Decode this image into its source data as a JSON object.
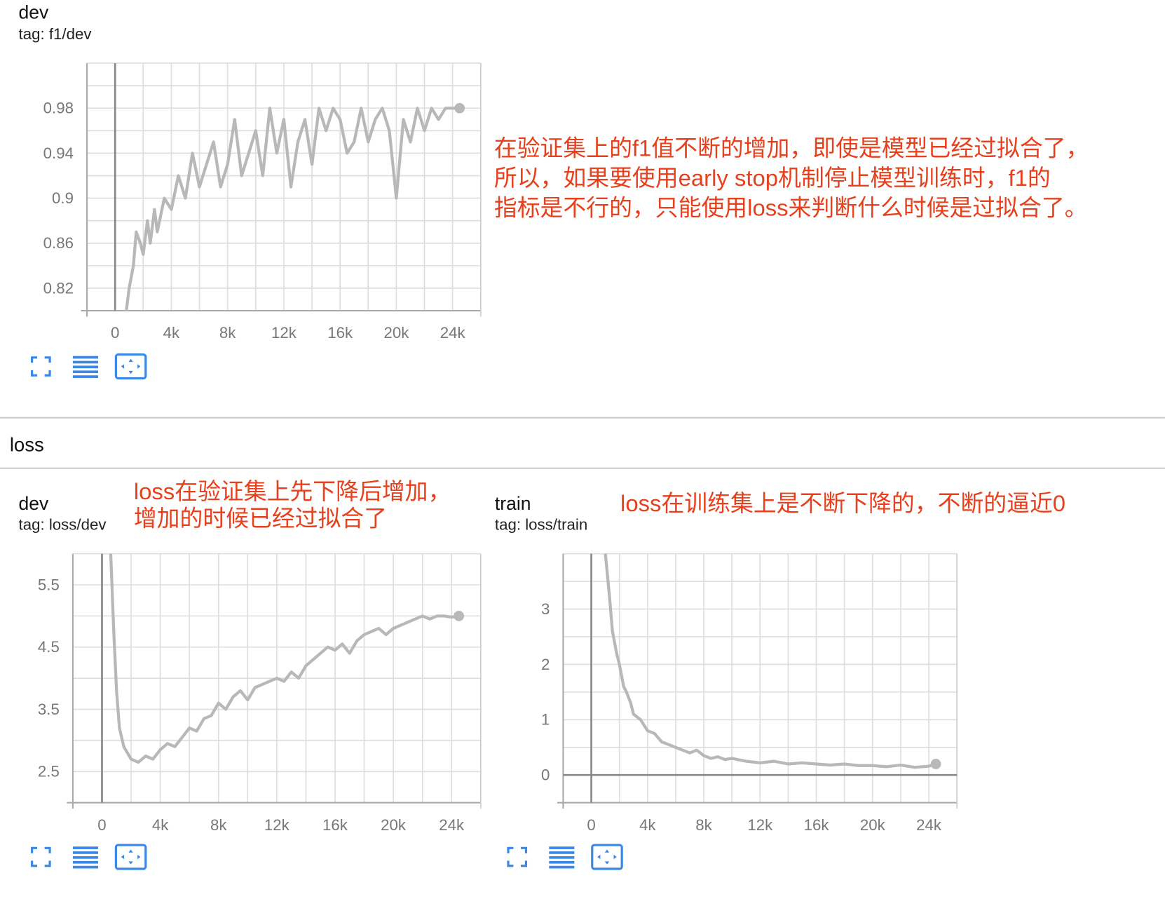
{
  "section_title": "loss",
  "chart_data": [
    {
      "type": "line",
      "title": "dev",
      "subtitle": "tag: f1/dev",
      "color": "#b8b8b8",
      "annotation": [
        "在验证集上的f1值不断的增加，即使是模型已经过拟合了，",
        "所以，如果要使用early stop机制停止模型训练时，f1的",
        "指标是不行的，只能使用loss来判断什么时候是过拟合了。"
      ],
      "x": [
        800,
        1000,
        1300,
        1500,
        1800,
        2000,
        2300,
        2500,
        2800,
        3000,
        3500,
        4000,
        4500,
        5000,
        5500,
        6000,
        6500,
        7000,
        7500,
        8000,
        8500,
        9000,
        9500,
        10000,
        10500,
        11000,
        11500,
        12000,
        12500,
        13000,
        13500,
        14000,
        14500,
        15000,
        15500,
        16000,
        16500,
        17000,
        17500,
        18000,
        18500,
        19000,
        19500,
        20000,
        20500,
        21000,
        21500,
        22000,
        22500,
        23000,
        23500,
        24000,
        24500
      ],
      "values": [
        0.8,
        0.82,
        0.84,
        0.87,
        0.86,
        0.85,
        0.88,
        0.86,
        0.89,
        0.87,
        0.9,
        0.89,
        0.92,
        0.9,
        0.94,
        0.91,
        0.93,
        0.95,
        0.91,
        0.93,
        0.97,
        0.92,
        0.94,
        0.96,
        0.92,
        0.98,
        0.94,
        0.97,
        0.91,
        0.95,
        0.97,
        0.93,
        0.98,
        0.96,
        0.98,
        0.97,
        0.94,
        0.95,
        0.98,
        0.95,
        0.97,
        0.98,
        0.96,
        0.9,
        0.97,
        0.95,
        0.98,
        0.96,
        0.98,
        0.97,
        0.98,
        0.98,
        0.98
      ],
      "xlim": [
        -2000,
        26000
      ],
      "xticks": [
        0,
        {
          "value": 4000,
          "label": "4k"
        },
        {
          "value": 8000,
          "label": "8k"
        },
        {
          "value": 12000,
          "label": "12k"
        },
        {
          "value": 16000,
          "label": "16k"
        },
        {
          "value": 20000,
          "label": "20k"
        },
        {
          "value": 24000,
          "label": "24k"
        }
      ],
      "x_minor_ticks": [
        -2000,
        2000,
        6000,
        10000,
        14000,
        18000,
        22000,
        26000
      ],
      "ylim": [
        0.8,
        1.02
      ],
      "yticks": [
        0.82,
        0.86,
        0.9,
        0.94,
        0.98
      ],
      "y_minor_ticks": [
        0.8,
        0.84,
        0.88,
        0.92,
        0.96,
        1.0,
        1.02
      ],
      "grid": true
    },
    {
      "type": "line",
      "title": "dev",
      "subtitle": "tag: loss/dev",
      "color": "#b8b8b8",
      "annotation": [
        "loss在验证集上先下降后增加，",
        "增加的时候已经过拟合了"
      ],
      "x": [
        600,
        800,
        1000,
        1200,
        1500,
        2000,
        2500,
        3000,
        3500,
        4000,
        4500,
        5000,
        5500,
        6000,
        6500,
        7000,
        7500,
        8000,
        8500,
        9000,
        9500,
        10000,
        10500,
        11000,
        11500,
        12000,
        12500,
        13000,
        13500,
        14000,
        14500,
        15000,
        15500,
        16000,
        16500,
        17000,
        17500,
        18000,
        18500,
        19000,
        19500,
        20000,
        20500,
        21000,
        21500,
        22000,
        22500,
        23000,
        23500,
        24000,
        24500
      ],
      "values": [
        6.0,
        4.8,
        3.8,
        3.2,
        2.9,
        2.7,
        2.65,
        2.75,
        2.7,
        2.85,
        2.95,
        2.9,
        3.05,
        3.2,
        3.15,
        3.35,
        3.4,
        3.6,
        3.5,
        3.7,
        3.8,
        3.65,
        3.85,
        3.9,
        3.95,
        4.0,
        3.95,
        4.1,
        4.0,
        4.2,
        4.3,
        4.4,
        4.5,
        4.45,
        4.55,
        4.4,
        4.6,
        4.7,
        4.75,
        4.8,
        4.7,
        4.8,
        4.85,
        4.9,
        4.95,
        5.0,
        4.95,
        5.0,
        5.0,
        4.98,
        5.0
      ],
      "xlim": [
        -2000,
        26000
      ],
      "xticks": [
        0,
        {
          "value": 4000,
          "label": "4k"
        },
        {
          "value": 8000,
          "label": "8k"
        },
        {
          "value": 12000,
          "label": "12k"
        },
        {
          "value": 16000,
          "label": "16k"
        },
        {
          "value": 20000,
          "label": "20k"
        },
        {
          "value": 24000,
          "label": "24k"
        }
      ],
      "x_minor_ticks": [
        -2000,
        2000,
        6000,
        10000,
        14000,
        18000,
        22000,
        26000
      ],
      "ylim": [
        2,
        6
      ],
      "yticks": [
        2.5,
        3.5,
        4.5,
        5.5
      ],
      "y_minor_ticks": [
        2,
        3,
        4,
        5,
        6
      ],
      "grid": true
    },
    {
      "type": "line",
      "title": "train",
      "subtitle": "tag: loss/train",
      "color": "#b8b8b8",
      "annotation": [
        "loss在训练集上是不断下降的，不断的逼近0"
      ],
      "x": [
        1000,
        1300,
        1500,
        1800,
        2000,
        2300,
        2500,
        2800,
        3000,
        3500,
        4000,
        4500,
        5000,
        5500,
        6000,
        6500,
        7000,
        7500,
        8000,
        8500,
        9000,
        9500,
        10000,
        11000,
        12000,
        13000,
        14000,
        15000,
        16000,
        17000,
        18000,
        19000,
        20000,
        21000,
        22000,
        23000,
        24000,
        24500
      ],
      "values": [
        4.0,
        3.2,
        2.6,
        2.2,
        2.0,
        1.6,
        1.5,
        1.3,
        1.1,
        1.0,
        0.8,
        0.75,
        0.6,
        0.55,
        0.5,
        0.45,
        0.4,
        0.45,
        0.35,
        0.3,
        0.33,
        0.28,
        0.3,
        0.25,
        0.22,
        0.25,
        0.2,
        0.22,
        0.2,
        0.18,
        0.2,
        0.17,
        0.17,
        0.15,
        0.18,
        0.14,
        0.16,
        0.2
      ],
      "xlim": [
        -2000,
        26000
      ],
      "xticks": [
        0,
        {
          "value": 4000,
          "label": "4k"
        },
        {
          "value": 8000,
          "label": "8k"
        },
        {
          "value": 12000,
          "label": "12k"
        },
        {
          "value": 16000,
          "label": "16k"
        },
        {
          "value": 20000,
          "label": "20k"
        },
        {
          "value": 24000,
          "label": "24k"
        }
      ],
      "x_minor_ticks": [
        -2000,
        2000,
        6000,
        10000,
        14000,
        18000,
        22000,
        26000
      ],
      "ylim": [
        -0.5,
        4
      ],
      "yticks": [
        0,
        1,
        2,
        3
      ],
      "y_minor_ticks": [
        -0.5,
        0.5,
        1.5,
        2.5,
        3.5,
        4
      ],
      "grid": true
    }
  ]
}
